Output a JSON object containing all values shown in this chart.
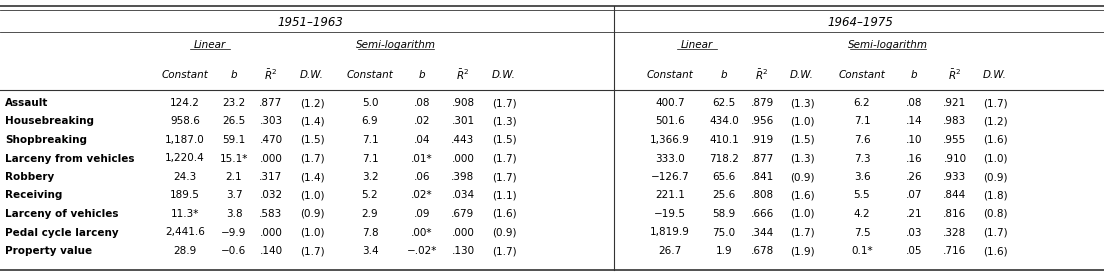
{
  "title_left": "1951–1963",
  "title_right": "1964–1975",
  "row_labels": [
    "Assault",
    "Housebreaking",
    "Shopbreaking",
    "Larceny from vehicles",
    "Robbery",
    "Receiving",
    "Larceny of vehicles",
    "Pedal cycle larceny",
    "Property value"
  ],
  "data_left": [
    [
      "124.2",
      "23.2",
      ".877",
      "(1.2)",
      "5.0",
      ".08",
      ".908",
      "(1.7)"
    ],
    [
      "958.6",
      "26.5",
      ".303",
      "(1.4)",
      "6.9",
      ".02",
      ".301",
      "(1.3)"
    ],
    [
      "1,187.0",
      "59.1",
      ".470",
      "(1.5)",
      "7.1",
      ".04",
      ".443",
      "(1.5)"
    ],
    [
      "1,220.4",
      "15.1*",
      ".000",
      "(1.7)",
      "7.1",
      ".01*",
      ".000",
      "(1.7)"
    ],
    [
      "24.3",
      "2.1",
      ".317",
      "(1.4)",
      "3.2",
      ".06",
      ".398",
      "(1.7)"
    ],
    [
      "189.5",
      "3.7",
      ".032",
      "(1.0)",
      "5.2",
      ".02*",
      ".034",
      "(1.1)"
    ],
    [
      "11.3*",
      "3.8",
      ".583",
      "(0.9)",
      "2.9",
      ".09",
      ".679",
      "(1.6)"
    ],
    [
      "2,441.6",
      "−9.9",
      ".000",
      "(1.0)",
      "7.8",
      ".00*",
      ".000",
      "(0.9)"
    ],
    [
      "28.9",
      "−0.6",
      ".140",
      "(1.7)",
      "3.4",
      "−.02*",
      ".130",
      "(1.7)"
    ]
  ],
  "data_right": [
    [
      "400.7",
      "62.5",
      ".879",
      "(1.3)",
      "6.2",
      ".08",
      ".921",
      "(1.7)"
    ],
    [
      "501.6",
      "434.0",
      ".956",
      "(1.0)",
      "7.1",
      ".14",
      ".983",
      "(1.2)"
    ],
    [
      "1,366.9",
      "410.1",
      ".919",
      "(1.5)",
      "7.6",
      ".10",
      ".955",
      "(1.6)"
    ],
    [
      "333.0",
      "718.2",
      ".877",
      "(1.3)",
      "7.3",
      ".16",
      ".910",
      "(1.0)"
    ],
    [
      "−126.7",
      "65.6",
      ".841",
      "(0.9)",
      "3.6",
      ".26",
      ".933",
      "(0.9)"
    ],
    [
      "221.1",
      "25.6",
      ".808",
      "(1.6)",
      "5.5",
      ".07",
      ".844",
      "(1.8)"
    ],
    [
      "−19.5",
      "58.9",
      ".666",
      "(1.0)",
      "4.2",
      ".21",
      ".816",
      "(0.8)"
    ],
    [
      "1,819.9",
      "75.0",
      ".344",
      "(1.7)",
      "7.5",
      ".03",
      ".328",
      "(1.7)"
    ],
    [
      "26.7",
      "1.9",
      ".678",
      "(1.9)",
      "0.1*",
      ".05",
      ".716",
      "(1.6)"
    ]
  ],
  "bg_color": "#ffffff",
  "text_color": "#000000",
  "line_color": "#333333"
}
